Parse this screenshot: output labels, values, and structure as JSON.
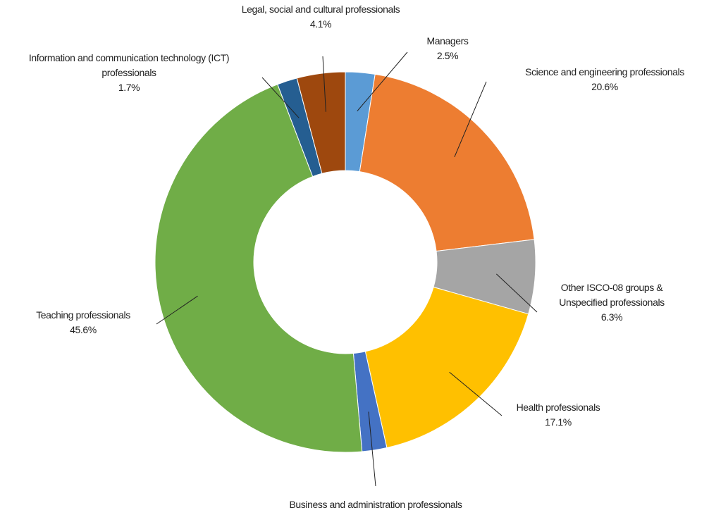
{
  "chart_data": {
    "type": "pie",
    "categories": [
      "Managers",
      "Science and engineering professionals",
      "Other ISCO-08 groups & Unspecified professionals",
      "Health professionals",
      "Business and administration professionals",
      "Teaching professionals",
      "Information and communication technology (ICT) professionals",
      "Legal, social and cultural professionals"
    ],
    "values": [
      2.5,
      20.6,
      6.3,
      17.1,
      2.1,
      45.6,
      1.7,
      4.1
    ],
    "value_labels": [
      "2.5%",
      "20.6%",
      "6.3%",
      "17.1%",
      null,
      "45.6%",
      "1.7%",
      "4.1%"
    ],
    "colors": [
      "#5b9bd5",
      "#ed7d31",
      "#a5a5a5",
      "#ffc000",
      "#4472c4",
      "#70ad47",
      "#255e91",
      "#9e480e"
    ],
    "donut": true
  }
}
